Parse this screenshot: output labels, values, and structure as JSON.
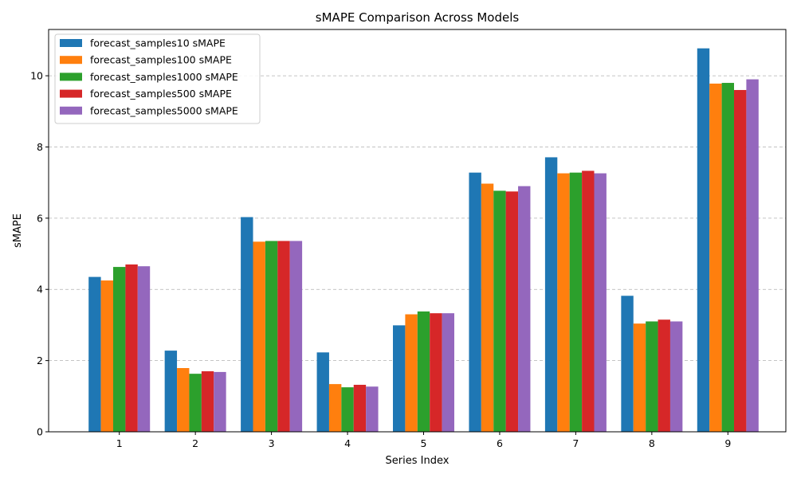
{
  "chart_data": {
    "type": "bar",
    "title": "sMAPE Comparison Across Models",
    "xlabel": "Series Index",
    "ylabel": "sMAPE",
    "categories": [
      "1",
      "2",
      "3",
      "4",
      "5",
      "6",
      "7",
      "8",
      "9"
    ],
    "ylim": [
      0,
      11.3
    ],
    "yticks": [
      0,
      2,
      4,
      6,
      8,
      10
    ],
    "grid": "y-dashed",
    "legend_position": "top-left",
    "series": [
      {
        "name": "forecast_samples10 sMAPE",
        "color": "#1f77b4",
        "values": [
          4.35,
          2.28,
          6.03,
          2.23,
          2.99,
          7.28,
          7.71,
          3.82,
          10.77
        ]
      },
      {
        "name": "forecast_samples100 sMAPE",
        "color": "#ff7f0e",
        "values": [
          4.25,
          1.79,
          5.34,
          1.34,
          3.3,
          6.97,
          7.26,
          3.04,
          9.78
        ]
      },
      {
        "name": "forecast_samples1000 sMAPE",
        "color": "#2ca02c",
        "values": [
          4.63,
          1.63,
          5.36,
          1.25,
          3.38,
          6.77,
          7.28,
          3.1,
          9.8
        ]
      },
      {
        "name": "forecast_samples500 sMAPE",
        "color": "#d62728",
        "values": [
          4.7,
          1.7,
          5.36,
          1.32,
          3.33,
          6.75,
          7.33,
          3.15,
          9.6
        ]
      },
      {
        "name": "forecast_samples5000 sMAPE",
        "color": "#9467bd",
        "values": [
          4.65,
          1.68,
          5.36,
          1.27,
          3.33,
          6.9,
          7.26,
          3.1,
          9.9
        ]
      }
    ]
  }
}
